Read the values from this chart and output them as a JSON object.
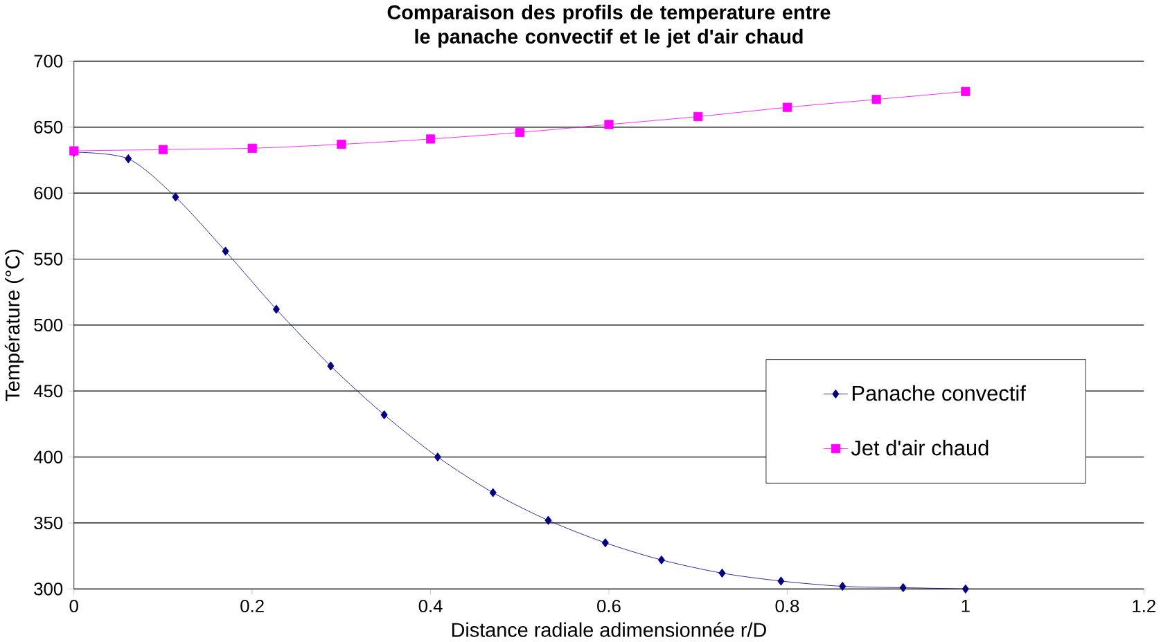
{
  "chart_data": {
    "type": "line",
    "title": "Comparaison des profils de temperature entre le panache convectif et le jet d'air chaud",
    "xlabel": "Distance radiale adimensionnée r/D",
    "ylabel": "Température (°C)",
    "series": [
      {
        "name": "Panache convectif",
        "color": "#000080",
        "marker": "diamond",
        "x": [
          0,
          0.061,
          0.114,
          0.17,
          0.227,
          0.288,
          0.348,
          0.408,
          0.47,
          0.532,
          0.596,
          0.659,
          0.727,
          0.793,
          0.862,
          0.93,
          1.0
        ],
        "values": [
          631,
          626,
          597,
          556,
          512,
          469,
          432,
          400,
          373,
          352,
          335,
          322,
          312,
          306,
          302,
          301,
          300
        ]
      },
      {
        "name": "Jet d'air chaud",
        "color": "#ff00ff",
        "marker": "square",
        "x": [
          0,
          0.1,
          0.2,
          0.3,
          0.4,
          0.5,
          0.6,
          0.7,
          0.8,
          0.9,
          1.0
        ],
        "values": [
          632,
          633,
          634,
          637,
          641,
          646,
          652,
          658,
          665,
          671,
          677
        ]
      }
    ],
    "xlim": [
      0,
      1.2
    ],
    "xticks": [
      0,
      0.2,
      0.4,
      0.6,
      0.8,
      1,
      1.2
    ],
    "ylim": [
      300,
      700
    ],
    "yticks": [
      300,
      350,
      400,
      450,
      500,
      550,
      600,
      650,
      700
    ],
    "grid": "y",
    "legend": "right",
    "line_style": "solid"
  }
}
